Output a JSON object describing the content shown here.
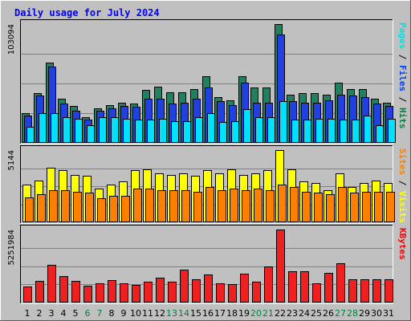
{
  "chart_data": {
    "type": "bar",
    "title": "Daily usage for July 2024",
    "days": [
      "1",
      "2",
      "3",
      "4",
      "5",
      "6",
      "7",
      "8",
      "9",
      "10",
      "11",
      "12",
      "13",
      "14",
      "15",
      "16",
      "17",
      "18",
      "19",
      "20",
      "21",
      "22",
      "23",
      "24",
      "25",
      "26",
      "27",
      "28",
      "29",
      "30",
      "31"
    ],
    "weekend_days": [
      "6",
      "7",
      "13",
      "14",
      "20",
      "21",
      "27",
      "28"
    ],
    "panels": [
      {
        "id": "hits",
        "max_label": "103094",
        "ymax": 103094,
        "legend": [
          "Pages",
          " / ",
          "Files",
          " / ",
          "Hits"
        ],
        "legend_colors": [
          "#00e0e0",
          "#000000",
          "#0040ff",
          "#000000",
          "#008040"
        ],
        "series": [
          {
            "name": "Hits",
            "color": "#208060",
            "values": [
              26000,
              43000,
              70000,
              38000,
              32000,
              22000,
              30000,
              33000,
              35000,
              34000,
              46000,
              49000,
              44000,
              44000,
              47000,
              58000,
              40000,
              37000,
              58000,
              48000,
              48000,
              103094,
              42000,
              43000,
              43000,
              42000,
              52000,
              47000,
              47000,
              38000,
              35000
            ]
          },
          {
            "name": "Files",
            "color": "#2040e0",
            "values": [
              24000,
              41000,
              66000,
              34000,
              28000,
              20000,
              28000,
              30000,
              32000,
              31000,
              38000,
              38000,
              34000,
              35000,
              38000,
              48000,
              36000,
              33000,
              52000,
              35000,
              35000,
              94000,
              36000,
              35000,
              35000,
              37000,
              42000,
              41000,
              40000,
              34000,
              32000
            ]
          },
          {
            "name": "Pages",
            "color": "#00e0ff",
            "values": [
              14000,
              26000,
              26000,
              22000,
              21000,
              15000,
              22000,
              22000,
              21000,
              20000,
              20000,
              21000,
              19000,
              19000,
              22000,
              26000,
              18000,
              19000,
              29000,
              22000,
              22000,
              36000,
              20000,
              20000,
              21000,
              21000,
              20000,
              20000,
              24000,
              15000,
              21000
            ]
          }
        ]
      },
      {
        "id": "visits",
        "max_label": "5144",
        "ymax": 5144,
        "legend": [
          "Sites",
          " / ",
          "Visits"
        ],
        "legend_colors": [
          "#ff8000",
          "#000000",
          "#ffff00"
        ],
        "series": [
          {
            "name": "Visits",
            "color": "#ffff00",
            "values": [
              2700,
              3000,
              3900,
              3700,
              3400,
              3300,
              2400,
              2700,
              2900,
              3700,
              3800,
              3500,
              3400,
              3500,
              3300,
              3700,
              3500,
              3800,
              3400,
              3500,
              3700,
              5144,
              3800,
              2900,
              2800,
              2300,
              3500,
              2500,
              2800,
              3000,
              2800
            ]
          },
          {
            "name": "Sites",
            "color": "#ff8000",
            "values": [
              1800,
              2000,
              2300,
              2300,
              2200,
              2100,
              1700,
              1900,
              1900,
              2400,
              2400,
              2300,
              2300,
              2300,
              2200,
              2500,
              2300,
              2400,
              2300,
              2400,
              2300,
              2700,
              2500,
              2200,
              2100,
              2000,
              2500,
              2100,
              2200,
              2200,
              2200
            ]
          }
        ]
      },
      {
        "id": "kbytes",
        "max_label": "5251984",
        "ymax": 5251984,
        "legend": [
          "KBytes"
        ],
        "legend_colors": [
          "#ff0000"
        ],
        "series": [
          {
            "name": "KBytes",
            "color": "#ee2020",
            "values": [
              1150000,
              1530000,
              2700000,
              1880000,
              1550000,
              1200000,
              1370000,
              1600000,
              1370000,
              1270000,
              1520000,
              1770000,
              1480000,
              2370000,
              1650000,
              2000000,
              1370000,
              1340000,
              2100000,
              1500000,
              2570000,
              5251984,
              2250000,
              2250000,
              1400000,
              2140000,
              2800000,
              1650000,
              1650000,
              1650000,
              1650000
            ]
          }
        ]
      }
    ]
  }
}
